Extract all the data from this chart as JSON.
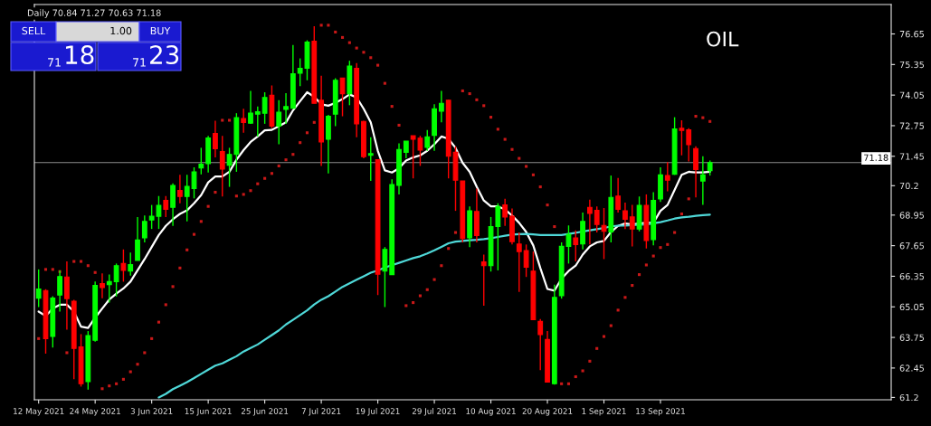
{
  "chart_data": {
    "type": "candlestick",
    "annotations": [
      "Daily 70.84 71.27 70.63 71.18",
      "OIL",
      "SELL",
      "1.00",
      "BUY",
      "71 18",
      "71 23"
    ],
    "categories": [
      "12 May 2021",
      null,
      null,
      null,
      null,
      null,
      null,
      null,
      "24 May 2021",
      null,
      null,
      null,
      null,
      null,
      null,
      null,
      "3 Jun 2021",
      null,
      null,
      null,
      null,
      null,
      null,
      null,
      "15 Jun 2021",
      null,
      null,
      null,
      null,
      null,
      null,
      null,
      "25 Jun 2021",
      null,
      null,
      null,
      null,
      null,
      null,
      null,
      "7 Jul 2021",
      null,
      null,
      null,
      null,
      null,
      null,
      null,
      "19 Jul 2021",
      null,
      null,
      null,
      null,
      null,
      null,
      null,
      "29 Jul 2021",
      null,
      null,
      null,
      null,
      null,
      null,
      null,
      "10 Aug 2021",
      null,
      null,
      null,
      null,
      null,
      null,
      null,
      "20 Aug 2021",
      null,
      null,
      null,
      null,
      null,
      null,
      null,
      "1 Sep 2021",
      null,
      null,
      null,
      null,
      null,
      null,
      null,
      "13 Sep 2021",
      null,
      null,
      null,
      null,
      null,
      null,
      null
    ],
    "ohlc": [
      [
        65.42,
        66.64,
        65.04,
        65.81
      ],
      [
        65.74,
        65.8,
        63.06,
        63.7
      ],
      [
        63.79,
        65.5,
        63.32,
        65.42
      ],
      [
        65.55,
        66.6,
        64.85,
        66.34
      ],
      [
        66.32,
        66.98,
        64.08,
        65.4
      ],
      [
        65.29,
        65.35,
        61.97,
        63.28
      ],
      [
        63.35,
        63.89,
        61.66,
        61.78
      ],
      [
        61.87,
        64.02,
        61.53,
        63.83
      ],
      [
        63.63,
        66.13,
        63.57,
        65.96
      ],
      [
        66.04,
        66.47,
        65.42,
        65.87
      ],
      [
        65.99,
        66.42,
        65.23,
        66.12
      ],
      [
        66.12,
        66.89,
        65.49,
        66.8
      ],
      [
        66.89,
        67.49,
        66.12,
        66.6
      ],
      [
        66.57,
        67.36,
        66.38,
        66.85
      ],
      [
        67.02,
        68.87,
        67.02,
        67.89
      ],
      [
        67.98,
        68.93,
        67.79,
        68.68
      ],
      [
        68.74,
        69.38,
        68.36,
        68.9
      ],
      [
        68.9,
        69.76,
        68.36,
        69.36
      ],
      [
        69.57,
        69.76,
        68.87,
        69.19
      ],
      [
        69.28,
        70.3,
        68.49,
        70.21
      ],
      [
        70.0,
        70.66,
        69.45,
        69.74
      ],
      [
        69.74,
        70.66,
        68.68,
        70.17
      ],
      [
        70.08,
        70.98,
        69.66,
        70.79
      ],
      [
        70.95,
        71.81,
        70.68,
        71.11
      ],
      [
        71.14,
        72.32,
        70.76,
        72.23
      ],
      [
        72.42,
        72.96,
        71.4,
        71.77
      ],
      [
        71.65,
        72.32,
        69.74,
        70.91
      ],
      [
        71.07,
        71.81,
        70.15,
        71.53
      ],
      [
        71.53,
        73.28,
        70.79,
        73.09
      ],
      [
        73.05,
        73.47,
        72.45,
        72.89
      ],
      [
        72.86,
        74.23,
        72.83,
        73.28
      ],
      [
        73.24,
        73.57,
        72.29,
        73.34
      ],
      [
        73.28,
        74.17,
        72.83,
        73.95
      ],
      [
        74.04,
        74.46,
        72.64,
        72.73
      ],
      [
        72.73,
        73.83,
        71.96,
        73.32
      ],
      [
        73.44,
        74.13,
        72.83,
        73.56
      ],
      [
        73.49,
        76.18,
        73.47,
        74.96
      ],
      [
        74.98,
        75.61,
        74.43,
        75.19
      ],
      [
        75.19,
        76.38,
        74.68,
        76.3
      ],
      [
        76.34,
        76.98,
        73.7,
        73.7
      ],
      [
        73.83,
        74.87,
        71.04,
        72.06
      ],
      [
        72.17,
        73.21,
        70.72,
        73.15
      ],
      [
        73.24,
        74.77,
        72.73,
        74.68
      ],
      [
        74.77,
        74.77,
        73.15,
        74.11
      ],
      [
        74.11,
        75.51,
        73.62,
        75.28
      ],
      [
        75.19,
        75.41,
        72.26,
        72.83
      ],
      [
        72.93,
        72.96,
        71.36,
        71.43
      ],
      [
        71.49,
        72.26,
        70.4,
        71.56
      ],
      [
        71.3,
        71.3,
        65.55,
        66.44
      ],
      [
        66.57,
        67.59,
        65.04,
        67.49
      ],
      [
        66.42,
        70.47,
        66.42,
        70.25
      ],
      [
        70.21,
        72.0,
        69.83,
        71.74
      ],
      [
        71.62,
        72.09,
        71.36,
        72.09
      ],
      [
        72.32,
        72.32,
        70.51,
        72.17
      ],
      [
        72.22,
        72.32,
        71.04,
        71.71
      ],
      [
        71.83,
        72.57,
        71.68,
        72.28
      ],
      [
        72.34,
        73.66,
        71.68,
        73.47
      ],
      [
        73.37,
        74.23,
        72.89,
        73.7
      ],
      [
        73.83,
        73.85,
        70.51,
        71.45
      ],
      [
        71.62,
        71.87,
        69.13,
        70.43
      ],
      [
        70.4,
        70.4,
        67.79,
        67.95
      ],
      [
        67.98,
        69.32,
        67.59,
        69.13
      ],
      [
        69.1,
        70.08,
        67.79,
        68.08
      ],
      [
        66.96,
        67.27,
        65.1,
        66.8
      ],
      [
        66.8,
        68.87,
        66.55,
        68.46
      ],
      [
        68.46,
        69.45,
        66.6,
        69.32
      ],
      [
        69.38,
        69.64,
        68.49,
        68.87
      ],
      [
        68.9,
        69.23,
        67.7,
        67.82
      ],
      [
        67.72,
        68.21,
        65.68,
        67.4
      ],
      [
        67.44,
        67.7,
        66.32,
        66.73
      ],
      [
        66.57,
        67.4,
        64.5,
        64.5
      ],
      [
        64.43,
        64.53,
        62.36,
        63.87
      ],
      [
        63.66,
        64.02,
        61.85,
        61.85
      ],
      [
        61.78,
        65.99,
        61.74,
        65.45
      ],
      [
        65.52,
        67.79,
        65.4,
        67.62
      ],
      [
        67.62,
        68.51,
        66.89,
        68.13
      ],
      [
        67.98,
        68.3,
        66.98,
        67.7
      ],
      [
        67.72,
        69.06,
        67.49,
        68.68
      ],
      [
        69.28,
        69.61,
        67.7,
        69.02
      ],
      [
        69.15,
        69.32,
        68.21,
        68.55
      ],
      [
        68.51,
        69.25,
        67.08,
        68.26
      ],
      [
        68.23,
        70.63,
        67.79,
        69.7
      ],
      [
        69.76,
        70.53,
        69.06,
        69.19
      ],
      [
        69.13,
        69.48,
        68.36,
        68.77
      ],
      [
        68.87,
        69.38,
        67.62,
        68.36
      ],
      [
        68.36,
        69.74,
        68.26,
        69.36
      ],
      [
        69.36,
        69.83,
        67.53,
        67.87
      ],
      [
        67.91,
        69.92,
        67.66,
        69.57
      ],
      [
        69.64,
        70.98,
        69.51,
        70.66
      ],
      [
        70.63,
        71.2,
        69.96,
        70.43
      ],
      [
        70.68,
        73.11,
        70.66,
        72.61
      ],
      [
        72.64,
        72.98,
        71.49,
        72.55
      ],
      [
        72.57,
        72.64,
        71.23,
        71.94
      ],
      [
        71.78,
        71.87,
        69.7,
        70.89
      ],
      [
        70.4,
        71.45,
        69.38,
        70.66
      ],
      [
        70.84,
        71.27,
        70.63,
        71.18
      ]
    ],
    "colors": [
      "#00ff00",
      "#ff0000",
      "#00ff00",
      "#00ff00",
      "#ff0000",
      "#ff0000",
      "#ff0000",
      "#00ff00",
      "#00ff00",
      "#ff0000",
      "#00ff00",
      "#00ff00",
      "#ff0000",
      "#00ff00",
      "#00ff00",
      "#00ff00",
      "#00ff00",
      "#00ff00",
      "#ff0000",
      "#00ff00",
      "#ff0000",
      "#00ff00",
      "#00ff00",
      "#00ff00",
      "#00ff00",
      "#ff0000",
      "#ff0000",
      "#00ff00",
      "#00ff00",
      "#ff0000",
      "#00ff00",
      "#00ff00",
      "#00ff00",
      "#ff0000",
      "#00ff00",
      "#00ff00",
      "#00ff00",
      "#00ff00",
      "#00ff00",
      "#ff0000",
      "#ff0000",
      "#00ff00",
      "#00ff00",
      "#ff0000",
      "#00ff00",
      "#ff0000",
      "#ff0000",
      "#00ff00",
      "#ff0000",
      "#00ff00",
      "#00ff00",
      "#00ff00",
      "#00ff00",
      "#ff0000",
      "#ff0000",
      "#00ff00",
      "#00ff00",
      "#00ff00",
      "#ff0000",
      "#ff0000",
      "#ff0000",
      "#00ff00",
      "#ff0000",
      "#ff0000",
      "#00ff00",
      "#00ff00",
      "#ff0000",
      "#ff0000",
      "#ff0000",
      "#ff0000",
      "#ff0000",
      "#ff0000",
      "#ff0000",
      "#00ff00",
      "#00ff00",
      "#00ff00",
      "#ff0000",
      "#00ff00",
      "#ff0000",
      "#ff0000",
      "#ff0000",
      "#00ff00",
      "#ff0000",
      "#ff0000",
      "#ff0000",
      "#00ff00",
      "#ff0000",
      "#00ff00",
      "#00ff00",
      "#ff0000",
      "#00ff00",
      "#ff0000",
      "#ff0000",
      "#ff0000",
      "#00ff00",
      "#00ff00"
    ],
    "series": [
      {
        "type": "line",
        "color": "#ffffff",
        "values": [
          64.85,
          64.66,
          64.98,
          65.14,
          65.14,
          64.85,
          64.21,
          64.15,
          64.59,
          64.98,
          65.36,
          65.61,
          65.83,
          66.12,
          66.6,
          67.08,
          67.59,
          68.1,
          68.49,
          68.77,
          69.0,
          69.15,
          69.45,
          69.8,
          70.34,
          70.59,
          70.59,
          70.79,
          71.3,
          71.71,
          72.06,
          72.29,
          72.55,
          72.57,
          72.73,
          72.89,
          73.4,
          73.79,
          74.17,
          73.98,
          73.66,
          73.6,
          73.72,
          73.88,
          74.08,
          73.95,
          73.47,
          72.89,
          71.68,
          70.85,
          70.76,
          70.94,
          71.27,
          71.4,
          71.49,
          71.68,
          71.96,
          72.29,
          72.19,
          71.81,
          71.17,
          70.79,
          70.15,
          69.57,
          69.32,
          69.32,
          69.19,
          68.93,
          68.62,
          68.23,
          67.66,
          66.7,
          65.81,
          65.74,
          66.25,
          66.57,
          66.8,
          67.27,
          67.62,
          67.79,
          67.85,
          68.23,
          68.49,
          68.59,
          68.55,
          68.59,
          68.62,
          68.62,
          69.13,
          69.38,
          70.02,
          70.66,
          70.79,
          70.76,
          70.76,
          70.79
        ]
      },
      {
        "type": "line",
        "color": "#4fd8d8",
        "values": [
          null,
          null,
          null,
          null,
          null,
          null,
          null,
          null,
          null,
          null,
          null,
          null,
          null,
          null,
          null,
          null,
          null,
          61.2,
          61.35,
          61.55,
          61.7,
          61.85,
          62.02,
          62.2,
          62.38,
          62.55,
          62.65,
          62.8,
          62.95,
          63.15,
          63.3,
          63.45,
          63.65,
          63.85,
          64.05,
          64.3,
          64.5,
          64.7,
          64.9,
          65.15,
          65.35,
          65.5,
          65.7,
          65.9,
          66.05,
          66.2,
          66.35,
          66.5,
          66.6,
          66.72,
          66.82,
          66.92,
          67.02,
          67.12,
          67.2,
          67.32,
          67.45,
          67.6,
          67.75,
          67.82,
          67.85,
          67.88,
          67.9,
          67.93,
          67.97,
          68.02,
          68.07,
          68.12,
          68.14,
          68.15,
          68.13,
          68.1,
          68.1,
          68.1,
          68.1,
          68.15,
          68.2,
          68.25,
          68.3,
          68.35,
          68.4,
          68.47,
          68.5,
          68.5,
          68.52,
          68.54,
          68.55,
          68.6,
          68.65,
          68.72,
          68.8,
          68.85,
          68.88,
          68.92,
          68.95,
          68.97
        ]
      },
      {
        "type": "scatter",
        "color": "#c81818",
        "marker": "square",
        "values": [
          63.7,
          66.64,
          66.64,
          66.55,
          63.1,
          66.98,
          66.98,
          66.8,
          66.51,
          61.57,
          61.69,
          61.78,
          61.97,
          62.29,
          62.61,
          63.1,
          63.7,
          64.4,
          65.14,
          65.91,
          66.7,
          67.47,
          68.13,
          68.68,
          69.32,
          69.92,
          72.98,
          72.98,
          69.76,
          69.83,
          69.99,
          70.28,
          70.51,
          70.72,
          71.04,
          71.3,
          71.53,
          72.03,
          72.45,
          72.89,
          77.02,
          77.02,
          76.73,
          76.5,
          76.28,
          76.05,
          75.87,
          75.64,
          75.32,
          74.55,
          73.57,
          72.77,
          65.1,
          65.23,
          65.52,
          65.78,
          66.21,
          66.8,
          67.53,
          68.21,
          74.23,
          74.11,
          73.85,
          73.6,
          73.11,
          72.6,
          72.17,
          71.74,
          71.36,
          71.02,
          70.66,
          70.15,
          69.38,
          68.46,
          61.78,
          61.78,
          62.08,
          62.33,
          62.74,
          63.28,
          63.79,
          64.25,
          64.91,
          65.45,
          65.96,
          66.42,
          66.83,
          67.21,
          67.57,
          67.7,
          68.21,
          69.0,
          69.64,
          73.15,
          73.09,
          72.93
        ]
      }
    ],
    "ylim": [
      61.1,
      77.9
    ],
    "yticks": [
      61.2,
      62.45,
      63.75,
      65.05,
      66.35,
      67.65,
      68.95,
      70.2,
      71.45,
      72.75,
      74.05,
      75.35,
      76.65
    ],
    "ref_lines": [
      {
        "axis": "y",
        "value": 71.18,
        "label": "71.18",
        "color": "#8c8c8c"
      }
    ],
    "grid": false,
    "legend": false
  }
}
